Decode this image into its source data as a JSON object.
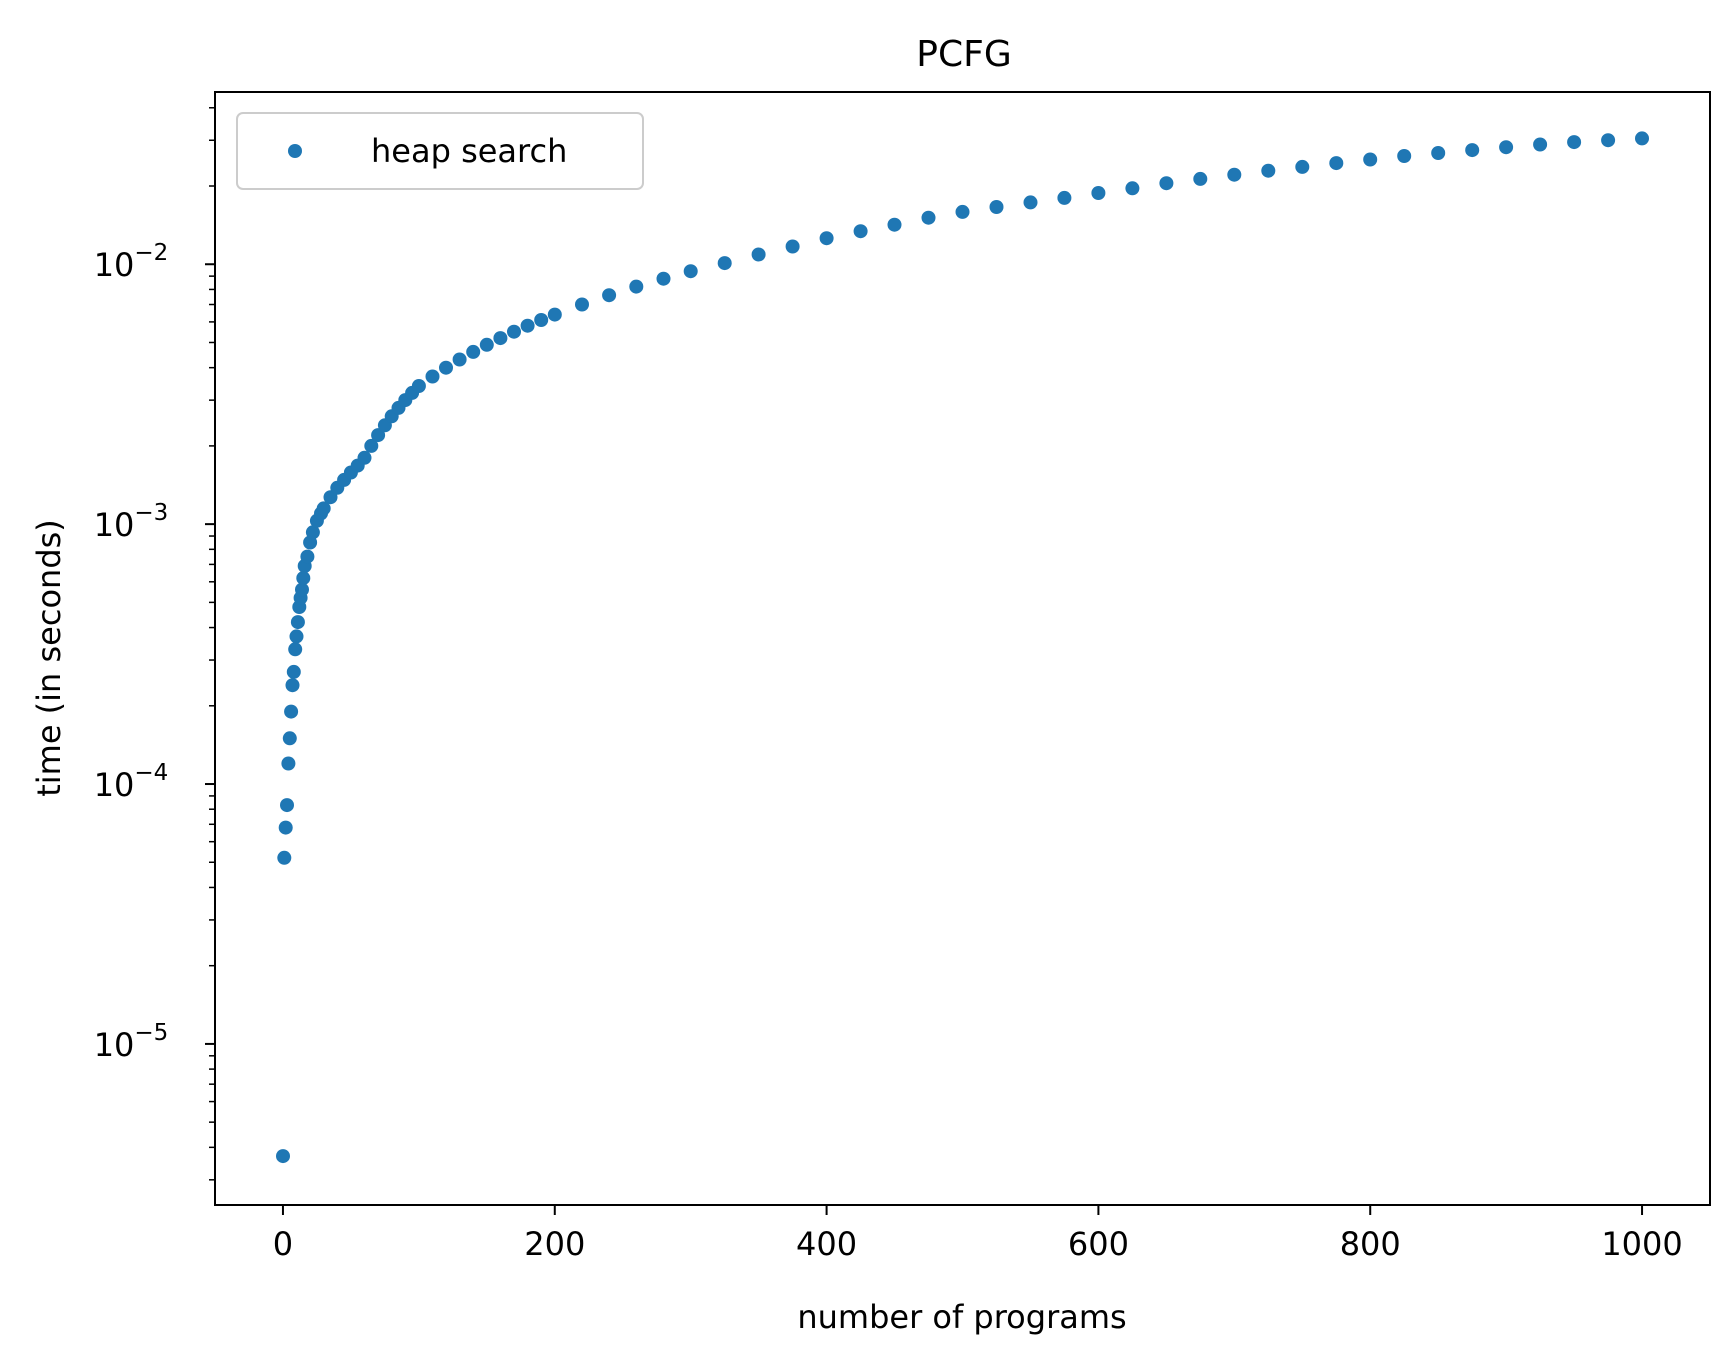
{
  "chart_data": {
    "type": "scatter",
    "title": "PCFG",
    "xlabel": "number of programs",
    "ylabel": "time (in seconds)",
    "xlim": [
      -50,
      1050
    ],
    "ylim": [
      2.4e-06,
      0.046
    ],
    "yscale": "log",
    "xticks": [
      "0",
      "200",
      "400",
      "600",
      "800",
      "1000"
    ],
    "yticks": [
      {
        "base": "10",
        "exp": "−5"
      },
      {
        "base": "10",
        "exp": "−4"
      },
      {
        "base": "10",
        "exp": "−3"
      },
      {
        "base": "10",
        "exp": "−2"
      }
    ],
    "legend_position": "top-left",
    "grid": false,
    "marker_color": "#1f77b4",
    "series": [
      {
        "name": "heap search",
        "x": [
          0,
          1,
          2,
          3,
          4,
          5,
          6,
          7,
          8,
          9,
          10,
          11,
          12,
          13,
          14,
          15,
          16,
          18,
          20,
          22,
          25,
          28,
          30,
          35,
          40,
          45,
          50,
          55,
          60,
          65,
          70,
          75,
          80,
          85,
          90,
          95,
          100,
          110,
          120,
          130,
          140,
          150,
          160,
          170,
          180,
          190,
          200,
          220,
          240,
          260,
          280,
          300,
          325,
          350,
          375,
          400,
          425,
          450,
          475,
          500,
          525,
          550,
          575,
          600,
          625,
          650,
          675,
          700,
          725,
          750,
          775,
          800,
          825,
          850,
          875,
          900,
          925,
          950,
          975,
          1000
        ],
        "y": [
          3.7e-06,
          5.2e-05,
          6.8e-05,
          8.3e-05,
          0.00012,
          0.00015,
          0.00019,
          0.00024,
          0.00027,
          0.00033,
          0.00037,
          0.00042,
          0.00048,
          0.00052,
          0.00056,
          0.00062,
          0.00069,
          0.00075,
          0.00085,
          0.00093,
          0.00103,
          0.0011,
          0.00115,
          0.00127,
          0.00138,
          0.00148,
          0.00158,
          0.00168,
          0.0018,
          0.002,
          0.0022,
          0.0024,
          0.0026,
          0.0028,
          0.003,
          0.0032,
          0.0034,
          0.0037,
          0.004,
          0.0043,
          0.0046,
          0.0049,
          0.0052,
          0.0055,
          0.0058,
          0.0061,
          0.0064,
          0.007,
          0.0076,
          0.0082,
          0.0088,
          0.0094,
          0.0101,
          0.0109,
          0.0117,
          0.0126,
          0.0134,
          0.0142,
          0.0151,
          0.0159,
          0.0166,
          0.0173,
          0.018,
          0.0188,
          0.0196,
          0.0205,
          0.0213,
          0.0221,
          0.0229,
          0.0237,
          0.0245,
          0.0253,
          0.0261,
          0.0268,
          0.0275,
          0.0282,
          0.0289,
          0.0295,
          0.03,
          0.0305
        ]
      }
    ]
  }
}
